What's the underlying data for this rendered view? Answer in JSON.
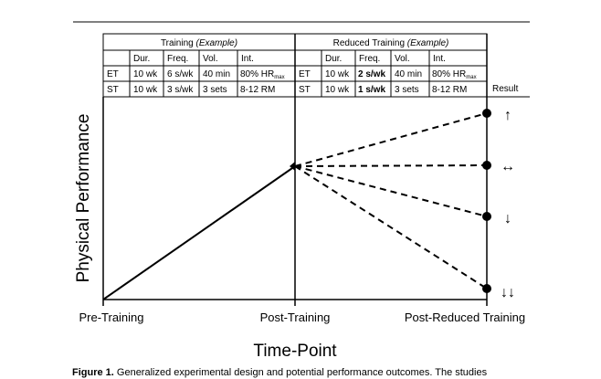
{
  "table": {
    "left_group": {
      "title_plain": "Training ",
      "title_italic": "(Example)"
    },
    "right_group": {
      "title_plain": "Reduced Training ",
      "title_italic": "(Example)"
    },
    "columns": [
      "Dur.",
      "Freq.",
      "Vol.",
      "Int."
    ],
    "result_header": "Result",
    "rows": [
      {
        "label": "ET",
        "training": {
          "dur": "10 wk",
          "freq": "6 s/wk",
          "vol": "40 min",
          "int": "80% HR",
          "int_sub": "max"
        },
        "reduced": {
          "dur": "10 wk",
          "freq": "2 s/wk",
          "vol": "40 min",
          "int": "80% HR",
          "int_sub": "max"
        }
      },
      {
        "label": "ST",
        "training": {
          "dur": "10 wk",
          "freq": "3 s/wk",
          "vol": "3 sets",
          "int": "8-12 RM"
        },
        "reduced": {
          "dur": "10 wk",
          "freq": "1 s/wk",
          "vol": "3 sets",
          "int": "8-12 RM"
        }
      }
    ]
  },
  "axes": {
    "y_label": "Physical Performance",
    "x_label": "Time-Point",
    "x_ticks": [
      "Pre-Training",
      "Post-Training",
      "Post-Reduced Training"
    ]
  },
  "results": [
    "↑",
    "↔",
    "↓",
    "↓↓"
  ],
  "caption": {
    "label": "Figure 1.",
    "text": " Generalized experimental design and potential performance outcomes. The studies"
  }
}
